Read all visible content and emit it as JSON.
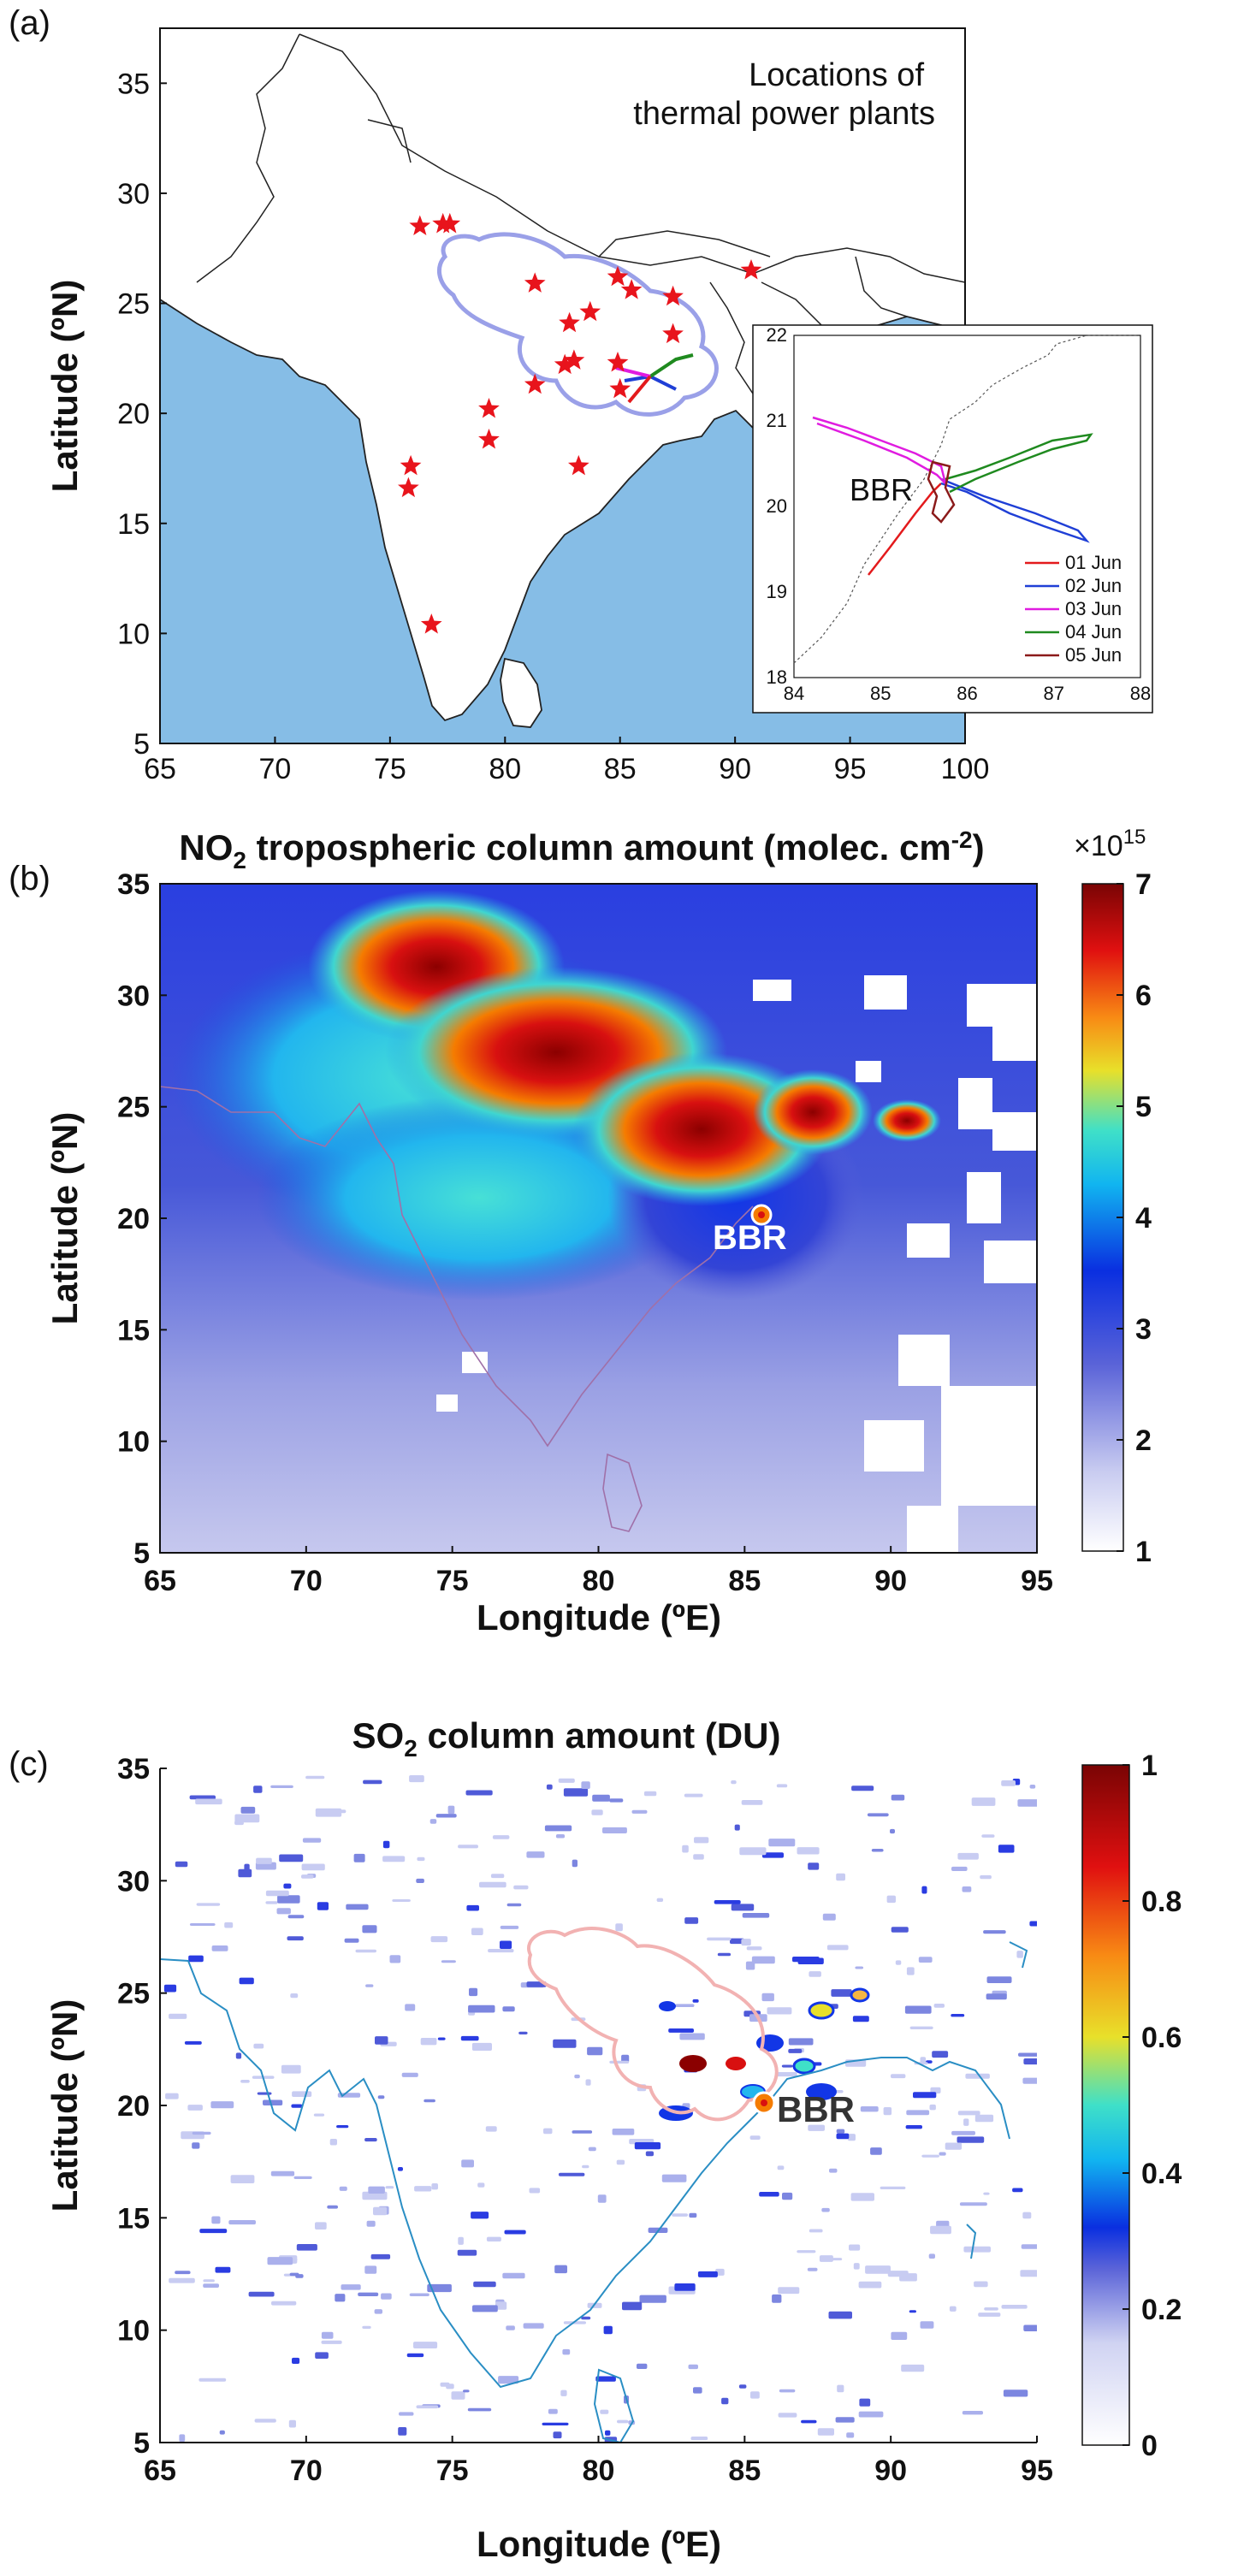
{
  "panels": {
    "a": {
      "letter": "(a)",
      "annotation_line1": "Locations of",
      "annotation_line2": "thermal power plants",
      "ylabel": "Latitude (ºN)",
      "xticks": [
        "65",
        "70",
        "75",
        "80",
        "85",
        "90",
        "95",
        "100"
      ],
      "yticks": [
        "35",
        "30",
        "25",
        "20",
        "15",
        "10",
        "5"
      ],
      "power_plants": [
        [
          76.3,
          28.5
        ],
        [
          77.3,
          28.6
        ],
        [
          77.6,
          28.6
        ],
        [
          81.3,
          25.9
        ],
        [
          83.7,
          24.6
        ],
        [
          84.9,
          26.2
        ],
        [
          85.5,
          25.6
        ],
        [
          87.3,
          25.3
        ],
        [
          90.7,
          26.5
        ],
        [
          82.8,
          24.1
        ],
        [
          82.6,
          22.2
        ],
        [
          83.0,
          22.4
        ],
        [
          84.9,
          22.3
        ],
        [
          87.3,
          23.6
        ],
        [
          81.3,
          21.3
        ],
        [
          85.0,
          21.1
        ],
        [
          79.3,
          20.2
        ],
        [
          79.3,
          18.8
        ],
        [
          83.2,
          17.6
        ],
        [
          75.9,
          17.6
        ],
        [
          75.8,
          16.6
        ],
        [
          76.8,
          10.4
        ]
      ],
      "inset": {
        "label": "BBR",
        "xticks": [
          "84",
          "85",
          "86",
          "87",
          "88"
        ],
        "yticks": [
          "22",
          "21",
          "20",
          "19",
          "18"
        ],
        "legend": [
          {
            "label": "01 Jun",
            "color": "#e31a1c"
          },
          {
            "label": "02 Jun",
            "color": "#1f3fd6"
          },
          {
            "label": "03 Jun",
            "color": "#e01ce0"
          },
          {
            "label": "04 Jun",
            "color": "#1f8a1f"
          },
          {
            "label": "05 Jun",
            "color": "#8b1a1a"
          }
        ]
      }
    },
    "b": {
      "letter": "(b)",
      "title_pre": "NO",
      "title_sub": "2",
      "title_mid": " tropospheric column amount (molec. cm",
      "title_sup": "-2",
      "title_post": ")",
      "site_label": "BBR",
      "xlabel": "Longitude (ºE)",
      "ylabel": "Latitude (ºN)",
      "xticks": [
        "65",
        "70",
        "75",
        "80",
        "85",
        "90",
        "95"
      ],
      "yticks": [
        "35",
        "30",
        "25",
        "20",
        "15",
        "10",
        "5"
      ],
      "colorbar_multiplier": "×10",
      "colorbar_exponent": "15",
      "colorbar_ticks": [
        "7",
        "6",
        "5",
        "4",
        "3",
        "2",
        "1"
      ]
    },
    "c": {
      "letter": "(c)",
      "title_pre": "SO",
      "title_sub": "2",
      "title_post": " column amount (DU)",
      "site_label": "BBR",
      "xlabel": "Longitude (ºE)",
      "ylabel": "Latitude (ºN)",
      "xticks": [
        "65",
        "70",
        "75",
        "80",
        "85",
        "90",
        "95"
      ],
      "yticks": [
        "35",
        "30",
        "25",
        "20",
        "15",
        "10",
        "5"
      ],
      "colorbar_ticks": [
        "1",
        "0.8",
        "0.6",
        "0.4",
        "0.2",
        "0"
      ]
    }
  },
  "colors": {
    "ocean": "#86bde6",
    "plant": "#e8141c",
    "cloud": "#9aa0e8",
    "cloud_c": "#f2b2b2",
    "coast": "#2a8ec4"
  }
}
